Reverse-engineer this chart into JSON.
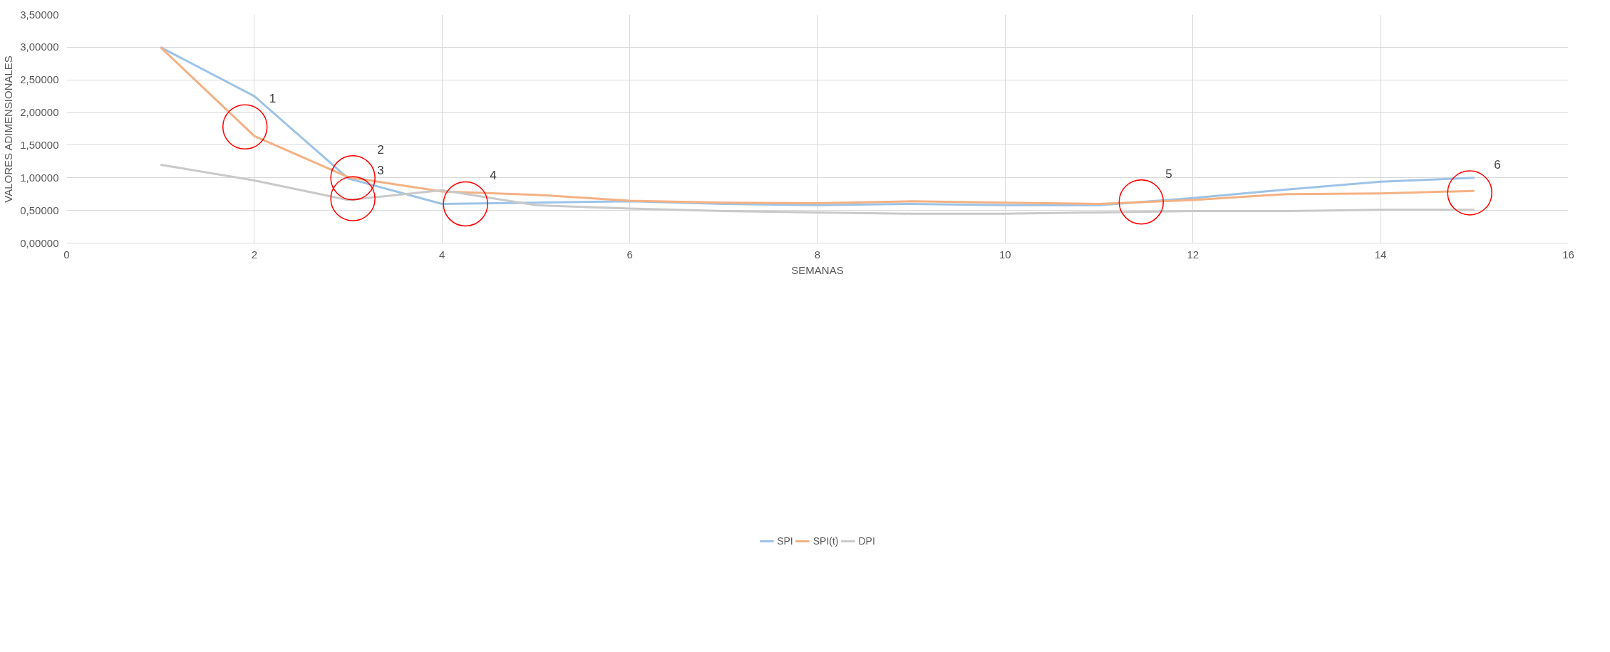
{
  "chart_data": {
    "type": "line",
    "xlabel": "SEMANAS",
    "ylabel": "VALORES ADIMENSIONALES",
    "x": [
      1,
      2,
      3,
      4,
      5,
      6,
      7,
      8,
      9,
      10,
      11,
      12,
      13,
      14,
      15
    ],
    "series": [
      {
        "name": "SPI",
        "color": "#9dc3e6",
        "values": [
          3.0,
          2.25,
          0.99,
          0.6,
          0.62,
          0.64,
          0.6,
          0.58,
          0.6,
          0.58,
          0.58,
          0.69,
          0.82,
          0.94,
          1.0
        ]
      },
      {
        "name": "SPI(t)",
        "color": "#f4b183",
        "values": [
          3.0,
          1.64,
          1.01,
          0.79,
          0.74,
          0.65,
          0.62,
          0.61,
          0.64,
          0.62,
          0.6,
          0.66,
          0.75,
          0.76,
          0.8
        ]
      },
      {
        "name": "DPI",
        "color": "#c9c9c9",
        "values": [
          1.2,
          0.96,
          0.66,
          0.81,
          0.58,
          0.53,
          0.49,
          0.47,
          0.45,
          0.45,
          0.47,
          0.49,
          0.49,
          0.51,
          0.51
        ]
      }
    ],
    "xlim": [
      0,
      16
    ],
    "xticks": [
      0,
      2,
      4,
      6,
      8,
      10,
      12,
      14,
      16
    ],
    "ylim": [
      0,
      3.5
    ],
    "yticks": [
      {
        "value": 0,
        "label": "0,00000"
      },
      {
        "value": 0.5,
        "label": "0,50000"
      },
      {
        "value": 1,
        "label": "1,00000"
      },
      {
        "value": 1.5,
        "label": "1,50000"
      },
      {
        "value": 2,
        "label": "2,00000"
      },
      {
        "value": 2.5,
        "label": "2,50000"
      },
      {
        "value": 3,
        "label": "3,00000"
      },
      {
        "value": 3.5,
        "label": "3,50000"
      }
    ],
    "annotations": [
      {
        "text": "1",
        "x": 1.9,
        "y": 1.78
      },
      {
        "text": "2",
        "x": 3.05,
        "y": 1.0
      },
      {
        "text": "3",
        "x": 3.05,
        "y": 0.68
      },
      {
        "text": "4",
        "x": 4.25,
        "y": 0.6
      },
      {
        "text": "5",
        "x": 11.45,
        "y": 0.63
      },
      {
        "text": "6",
        "x": 14.95,
        "y": 0.77
      }
    ],
    "grid": true,
    "legend": "bottom",
    "marker": "none",
    "line_style": "solid"
  }
}
